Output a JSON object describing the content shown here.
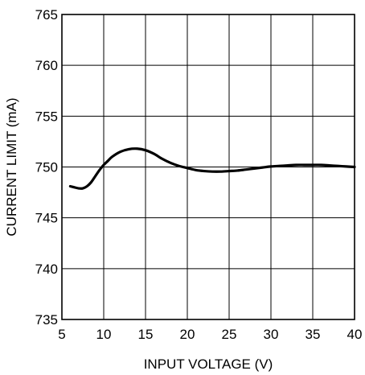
{
  "chart_data": {
    "type": "line",
    "title": "",
    "xlabel": "INPUT VOLTAGE (V)",
    "ylabel": "CURRENT LIMIT (mA)",
    "xlim": [
      5,
      40
    ],
    "ylim": [
      735,
      765
    ],
    "x_ticks": [
      5,
      10,
      15,
      20,
      25,
      30,
      35,
      40
    ],
    "y_ticks": [
      735,
      740,
      745,
      750,
      755,
      760,
      765
    ],
    "x_tick_labels": [
      "5",
      "10",
      "15",
      "20",
      "25",
      "30",
      "35",
      "40"
    ],
    "y_tick_labels": [
      "735",
      "740",
      "745",
      "750",
      "755",
      "760",
      "765"
    ],
    "grid": true,
    "legend": "none",
    "colors": {
      "line": "#000000",
      "grid": "#000000",
      "background": "#ffffff"
    },
    "series": [
      {
        "x": [
          6,
          6.5,
          7,
          7.5,
          8,
          8.5,
          9,
          9.5,
          10,
          10.5,
          11,
          12,
          13,
          14,
          15,
          16,
          17,
          18,
          19,
          20,
          21,
          22,
          23,
          24,
          25,
          26,
          27,
          28,
          29,
          30,
          31,
          32,
          33,
          34,
          35,
          36,
          37,
          38,
          39,
          40
        ],
        "values": [
          748.1,
          748.0,
          747.9,
          747.9,
          748.1,
          748.5,
          749.1,
          749.7,
          750.2,
          750.6,
          751.0,
          751.5,
          751.75,
          751.8,
          751.65,
          751.3,
          750.8,
          750.4,
          750.1,
          749.9,
          749.7,
          749.6,
          749.55,
          749.55,
          749.6,
          749.65,
          749.75,
          749.85,
          749.95,
          750.05,
          750.1,
          750.15,
          750.2,
          750.2,
          750.2,
          750.2,
          750.15,
          750.1,
          750.05,
          750.0
        ]
      }
    ]
  }
}
